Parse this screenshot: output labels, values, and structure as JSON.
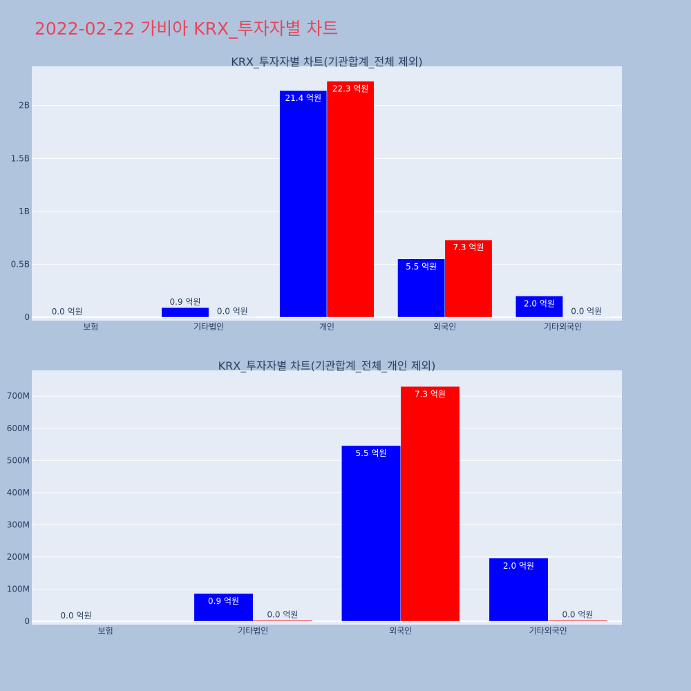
{
  "page": {
    "title": "2022-02-22 가비아 KRX_투자자별 차트"
  },
  "colors": {
    "background": "#b0c4de",
    "plot_bg": "#e5ecf6",
    "grid": "#ffffff",
    "title": "#e8455a",
    "text": "#2a3f5f"
  },
  "chart_data": [
    {
      "type": "bar",
      "title": "KRX_투자자별 차트(기관합계_전체 제외)",
      "categories": [
        "보험",
        "기타법인",
        "개인",
        "외국인",
        "기타외국인"
      ],
      "ylim": [
        0,
        2370000000
      ],
      "yticks": [
        0,
        500000000,
        1000000000,
        1500000000,
        2000000000
      ],
      "ytick_labels": [
        "0",
        "0.5B",
        "1B",
        "1.5B",
        "2B"
      ],
      "grid": true,
      "legend": "none",
      "series": [
        {
          "color": "#0000ff",
          "values": [
            0,
            90000000,
            2140000000,
            550000000,
            200000000
          ],
          "labels": [
            "0.0 억원",
            "0.9 억원",
            "21.4 억원",
            "5.5 억원",
            "2.0 억원"
          ]
        },
        {
          "color": "#ff0000",
          "values": [
            null,
            3000000,
            2230000000,
            730000000,
            3000000
          ],
          "labels": [
            null,
            "0.0 억원",
            "22.3 억원",
            "7.3 억원",
            "0.0 억원"
          ]
        }
      ]
    },
    {
      "type": "bar",
      "title": "KRX_투자자별 차트(기관합계_전체_개인 제외)",
      "categories": [
        "보험",
        "기타법인",
        "외국인",
        "기타외국인"
      ],
      "ylim": [
        0,
        780000000
      ],
      "yticks": [
        0,
        100000000,
        200000000,
        300000000,
        400000000,
        500000000,
        600000000,
        700000000
      ],
      "ytick_labels": [
        "0",
        "100M",
        "200M",
        "300M",
        "400M",
        "500M",
        "600M",
        "700M"
      ],
      "grid": true,
      "legend": "none",
      "series": [
        {
          "color": "#0000ff",
          "values": [
            0,
            86000000,
            546000000,
            196000000
          ],
          "labels": [
            "0.0 억원",
            "0.9 억원",
            "5.5 억원",
            "2.0 억원"
          ]
        },
        {
          "color": "#ff0000",
          "values": [
            null,
            3000000,
            730000000,
            3000000
          ],
          "labels": [
            null,
            "0.0 억원",
            "7.3 억원",
            "0.0 억원"
          ]
        }
      ]
    }
  ]
}
